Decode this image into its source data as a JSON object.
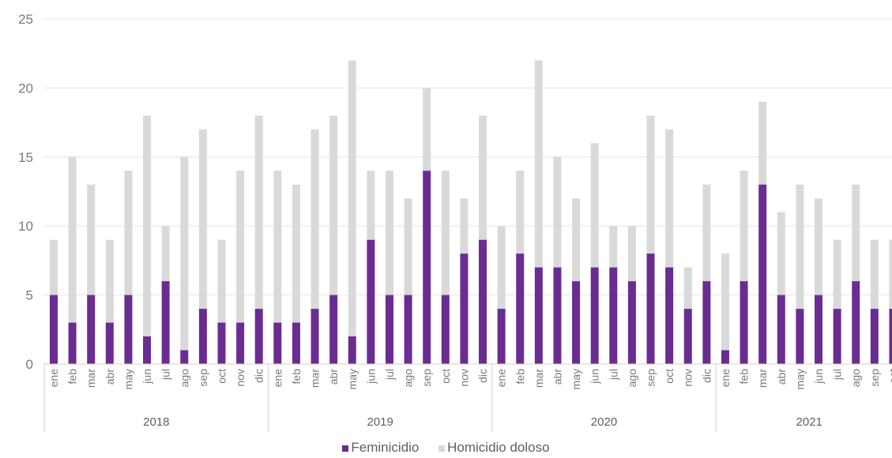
{
  "chart_data": {
    "type": "bar",
    "stacked": true,
    "ylim": [
      0,
      25
    ],
    "yticks": [
      "0",
      "5",
      "10",
      "15",
      "20",
      "25"
    ],
    "grid": true,
    "legend_position": "bottom",
    "groups": [
      {
        "label": "2018",
        "months": [
          "ene",
          "feb",
          "mar",
          "abr",
          "may",
          "jun",
          "jul",
          "ago",
          "sep",
          "oct",
          "nov",
          "dic"
        ]
      },
      {
        "label": "2019",
        "months": [
          "ene",
          "feb",
          "mar",
          "abr",
          "may",
          "jun",
          "jul",
          "ago",
          "sep",
          "oct",
          "nov",
          "dic"
        ]
      },
      {
        "label": "2020",
        "months": [
          "ene",
          "feb",
          "mar",
          "abr",
          "may",
          "jun",
          "jul",
          "ago",
          "sep",
          "oct",
          "nov",
          "dic"
        ]
      },
      {
        "label": "2021",
        "months": [
          "ene",
          "feb",
          "mar",
          "abr",
          "may",
          "jun",
          "jul",
          "ago",
          "sep",
          "oct"
        ]
      }
    ],
    "series": [
      {
        "name": "Feminicidio",
        "color": "#6a2c91",
        "values": [
          5,
          3,
          5,
          3,
          5,
          2,
          6,
          1,
          4,
          3,
          3,
          4,
          3,
          3,
          4,
          5,
          2,
          9,
          5,
          5,
          14,
          5,
          8,
          9,
          4,
          8,
          7,
          7,
          6,
          7,
          7,
          6,
          8,
          7,
          4,
          6,
          1,
          6,
          13,
          5,
          4,
          5,
          4,
          6,
          4,
          4
        ]
      },
      {
        "name": "Homicidio doloso",
        "color": "#d9d9d9",
        "values": [
          4,
          12,
          8,
          6,
          9,
          16,
          4,
          14,
          13,
          6,
          11,
          14,
          11,
          10,
          13,
          13,
          20,
          5,
          9,
          7,
          6,
          9,
          4,
          9,
          6,
          6,
          15,
          8,
          6,
          9,
          3,
          4,
          10,
          10,
          3,
          7,
          7,
          8,
          6,
          6,
          9,
          7,
          5,
          7,
          5,
          5
        ]
      }
    ]
  }
}
